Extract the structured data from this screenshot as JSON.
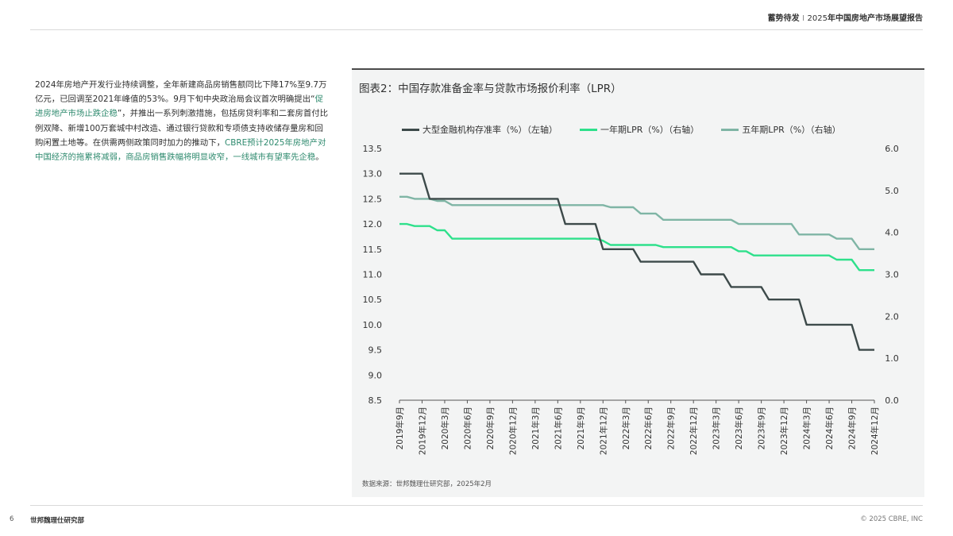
{
  "header": {
    "brand": "蓄势待发",
    "separator": "I",
    "year": "2025",
    "title_rest": "年中国房地产市场展望报告"
  },
  "body": {
    "p1": "2024年房地产开发行业持续调整，全年新建商品房销售额同比下降17%至9.7万亿元，已回调至2021年峰值的53%。9月下旬中央政治局会议首次明确提出“",
    "hl1": "促进房地产市场止跌企稳",
    "p2": "”，并推出一系列刺激措施，包括房贷利率和二套房首付比例双降、新增100万套城中村改造、通过银行贷款和专项债支持收储存量房和回购闲置土地等。在供需两侧政策同时加力的推动下，",
    "hl2": "CBRE预计2025年房地产对中国经济的拖累将减弱，商品房销售跌幅将明显收窄，一线城市有望率先企稳",
    "p3": "。"
  },
  "chart": {
    "title": "图表2：中国存款准备金率与贷款市场报价利率（LPR）",
    "source": "数据来源：世邦魏理仕研究部，2025年2月"
  },
  "chart_data": {
    "type": "line",
    "x": [
      "2019年9月",
      "2019年10月",
      "2019年11月",
      "2019年12月",
      "2020年1月",
      "2020年2月",
      "2020年3月",
      "2020年4月",
      "2020年5月",
      "2020年6月",
      "2020年7月",
      "2020年8月",
      "2020年9月",
      "2020年10月",
      "2020年11月",
      "2020年12月",
      "2021年1月",
      "2021年2月",
      "2021年3月",
      "2021年4月",
      "2021年5月",
      "2021年6月",
      "2021年7月",
      "2021年8月",
      "2021年9月",
      "2021年10月",
      "2021年11月",
      "2021年12月",
      "2022年1月",
      "2022年2月",
      "2022年3月",
      "2022年4月",
      "2022年5月",
      "2022年6月",
      "2022年7月",
      "2022年8月",
      "2022年9月",
      "2022年10月",
      "2022年11月",
      "2022年12月",
      "2023年1月",
      "2023年2月",
      "2023年3月",
      "2023年4月",
      "2023年5月",
      "2023年6月",
      "2023年7月",
      "2023年8月",
      "2023年9月",
      "2023年10月",
      "2023年11月",
      "2023年12月",
      "2024年1月",
      "2024年2月",
      "2024年3月",
      "2024年4月",
      "2024年5月",
      "2024年6月",
      "2024年7月",
      "2024年8月",
      "2024年9月",
      "2024年10月",
      "2024年11月",
      "2024年12月"
    ],
    "x_tick_labels": [
      "2019年9月",
      "2019年12月",
      "2020年3月",
      "2020年6月",
      "2020年9月",
      "2020年12月",
      "2021年3月",
      "2021年6月",
      "2021年9月",
      "2021年12月",
      "2022年3月",
      "2022年6月",
      "2022年9月",
      "2022年12月",
      "2023年3月",
      "2023年6月",
      "2023年9月",
      "2023年12月",
      "2024年3月",
      "2024年6月",
      "2024年9月",
      "2024年12月"
    ],
    "series": [
      {
        "name": "大型金融机构存准率（%）（左轴）",
        "axis": "left",
        "color": "#3d4a4a",
        "values": [
          13.0,
          13.0,
          13.0,
          13.0,
          12.5,
          12.5,
          12.5,
          12.5,
          12.5,
          12.5,
          12.5,
          12.5,
          12.5,
          12.5,
          12.5,
          12.5,
          12.5,
          12.5,
          12.5,
          12.5,
          12.5,
          12.5,
          12.0,
          12.0,
          12.0,
          12.0,
          12.0,
          11.5,
          11.5,
          11.5,
          11.5,
          11.5,
          11.25,
          11.25,
          11.25,
          11.25,
          11.25,
          11.25,
          11.25,
          11.25,
          11.0,
          11.0,
          11.0,
          11.0,
          10.75,
          10.75,
          10.75,
          10.75,
          10.75,
          10.5,
          10.5,
          10.5,
          10.5,
          10.5,
          10.0,
          10.0,
          10.0,
          10.0,
          10.0,
          10.0,
          10.0,
          9.5,
          9.5,
          9.5
        ]
      },
      {
        "name": "一年期LPR（%）（右轴）",
        "axis": "right",
        "color": "#2ee08b",
        "values": [
          4.2,
          4.2,
          4.15,
          4.15,
          4.15,
          4.05,
          4.05,
          3.85,
          3.85,
          3.85,
          3.85,
          3.85,
          3.85,
          3.85,
          3.85,
          3.85,
          3.85,
          3.85,
          3.85,
          3.85,
          3.85,
          3.85,
          3.85,
          3.85,
          3.85,
          3.85,
          3.85,
          3.8,
          3.7,
          3.7,
          3.7,
          3.7,
          3.7,
          3.7,
          3.7,
          3.65,
          3.65,
          3.65,
          3.65,
          3.65,
          3.65,
          3.65,
          3.65,
          3.65,
          3.65,
          3.55,
          3.55,
          3.45,
          3.45,
          3.45,
          3.45,
          3.45,
          3.45,
          3.45,
          3.45,
          3.45,
          3.45,
          3.45,
          3.35,
          3.35,
          3.35,
          3.1,
          3.1,
          3.1
        ]
      },
      {
        "name": "五年期LPR（%）（右轴）",
        "axis": "right",
        "color": "#7fb5a5",
        "values": [
          4.85,
          4.85,
          4.8,
          4.8,
          4.8,
          4.75,
          4.75,
          4.65,
          4.65,
          4.65,
          4.65,
          4.65,
          4.65,
          4.65,
          4.65,
          4.65,
          4.65,
          4.65,
          4.65,
          4.65,
          4.65,
          4.65,
          4.65,
          4.65,
          4.65,
          4.65,
          4.65,
          4.65,
          4.6,
          4.6,
          4.6,
          4.6,
          4.45,
          4.45,
          4.45,
          4.3,
          4.3,
          4.3,
          4.3,
          4.3,
          4.3,
          4.3,
          4.3,
          4.3,
          4.3,
          4.2,
          4.2,
          4.2,
          4.2,
          4.2,
          4.2,
          4.2,
          4.2,
          3.95,
          3.95,
          3.95,
          3.95,
          3.95,
          3.85,
          3.85,
          3.85,
          3.6,
          3.6,
          3.6
        ]
      }
    ],
    "y_left": {
      "min": 8.5,
      "max": 13.5,
      "ticks": [
        "8.5",
        "9.0",
        "9.5",
        "10.0",
        "10.5",
        "11.0",
        "11.5",
        "12.0",
        "12.5",
        "13.0",
        "13.5"
      ]
    },
    "y_right": {
      "min": 0.0,
      "max": 6.0,
      "ticks": [
        "0.0",
        "1.0",
        "2.0",
        "3.0",
        "4.0",
        "5.0",
        "6.0"
      ]
    },
    "legend_position": "top",
    "grid": false
  },
  "footer": {
    "page": "6",
    "org": "世邦魏理仕研究部",
    "copyright": "© 2025 CBRE, INC"
  }
}
